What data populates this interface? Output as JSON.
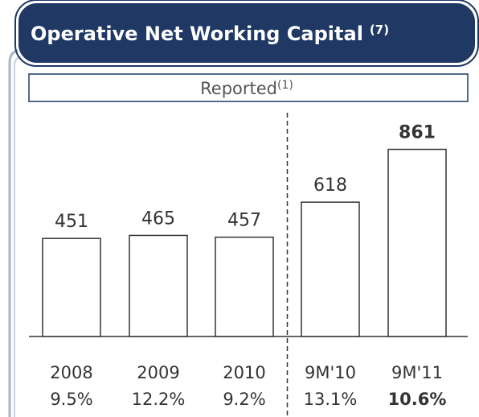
{
  "chart_data": {
    "type": "bar",
    "title": "Operative Net Working Capital",
    "title_note": "(7)",
    "subtitle": "Reported",
    "subtitle_note": "(1)",
    "categories": [
      "2008",
      "2009",
      "2010",
      "9M'10",
      "9M'11"
    ],
    "values": [
      451,
      465,
      457,
      618,
      861
    ],
    "ratio_labels": [
      "9.5%",
      "12.2%",
      "9.2%",
      "13.1%",
      "10.6%"
    ],
    "emphasis_index": 4,
    "divider_after": 2,
    "color": "#ffffff"
  }
}
